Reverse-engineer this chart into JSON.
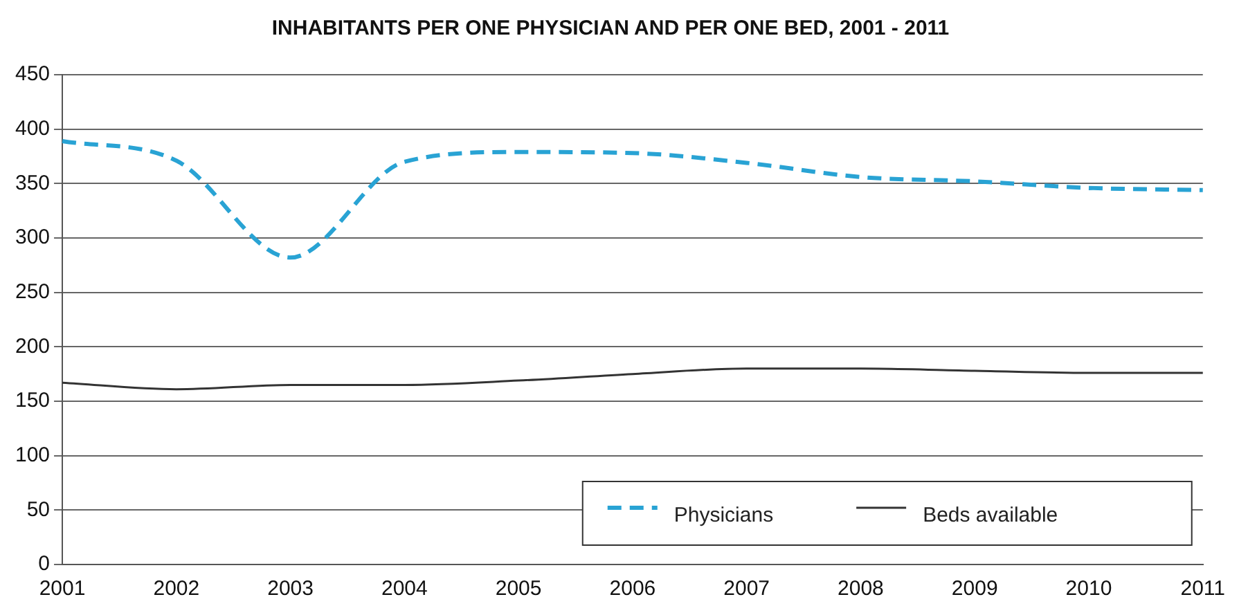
{
  "chart_data": {
    "type": "line",
    "title": "INHABITANTS PER ONE PHYSICIAN AND PER ONE BED, 2001 - 2011",
    "categories": [
      "2001",
      "2002",
      "2003",
      "2004",
      "2005",
      "2006",
      "2007",
      "2008",
      "2009",
      "2010",
      "2011"
    ],
    "series": [
      {
        "name": "Physicians",
        "color": "#29a3d4",
        "line_style": "dashed",
        "values": [
          389,
          371,
          282,
          370,
          379,
          378,
          369,
          356,
          352,
          346,
          344
        ]
      },
      {
        "name": "Beds available",
        "color": "#333333",
        "line_style": "solid",
        "values": [
          167,
          161,
          165,
          165,
          169,
          175,
          180,
          180,
          178,
          176,
          176
        ]
      }
    ],
    "ylim": [
      0,
      450
    ],
    "yticks": [
      0,
      50,
      100,
      150,
      200,
      250,
      300,
      350,
      400,
      450
    ],
    "grid": "y",
    "legend": "bottom right",
    "marker": "none"
  }
}
